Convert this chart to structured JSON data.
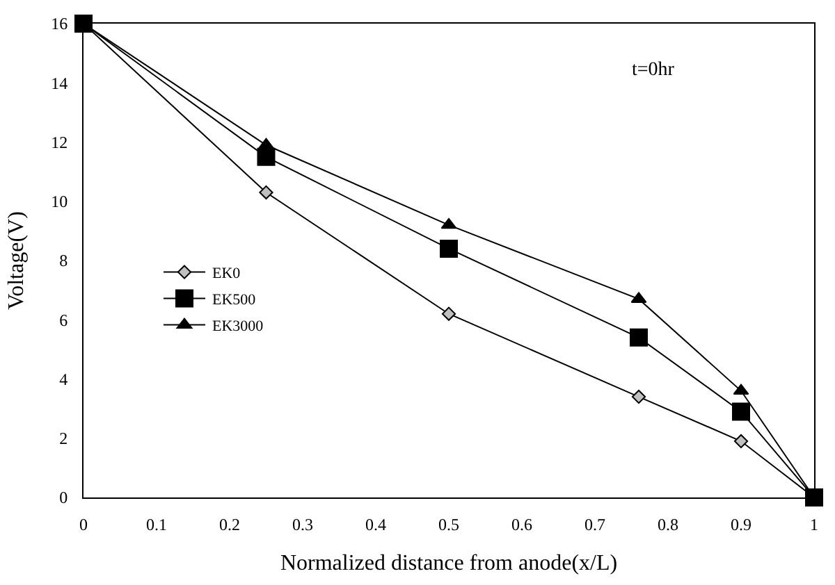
{
  "chart_data": {
    "type": "line",
    "xlabel": "Normalized distance from anode(x/L)",
    "ylabel": "Voltage(V)",
    "annotations": [
      "t=0hr"
    ],
    "x": [
      0,
      0.25,
      0.5,
      0.76,
      0.9,
      1
    ],
    "series": [
      {
        "name": "EK0",
        "color": "#c0c0c0",
        "marker": "diamond",
        "values": [
          16,
          10.3,
          6.2,
          3.4,
          1.9,
          0
        ]
      },
      {
        "name": "EK500",
        "color": "#000000",
        "marker": "square",
        "values": [
          16,
          11.5,
          8.4,
          5.4,
          2.9,
          0
        ]
      },
      {
        "name": "EK3000",
        "color": "#000000",
        "marker": "triangle",
        "values": [
          16,
          11.9,
          9.2,
          6.7,
          3.6,
          0
        ]
      }
    ],
    "xlim": [
      0,
      1
    ],
    "xticks": [
      0,
      0.1,
      0.2,
      0.3,
      0.4,
      0.5,
      0.6,
      0.7,
      0.8,
      0.9,
      1
    ],
    "ylim": [
      0,
      16
    ],
    "yticks": [
      0,
      2,
      4,
      6,
      8,
      10,
      12,
      14,
      16
    ],
    "legend": "left",
    "line_style": "solid"
  }
}
